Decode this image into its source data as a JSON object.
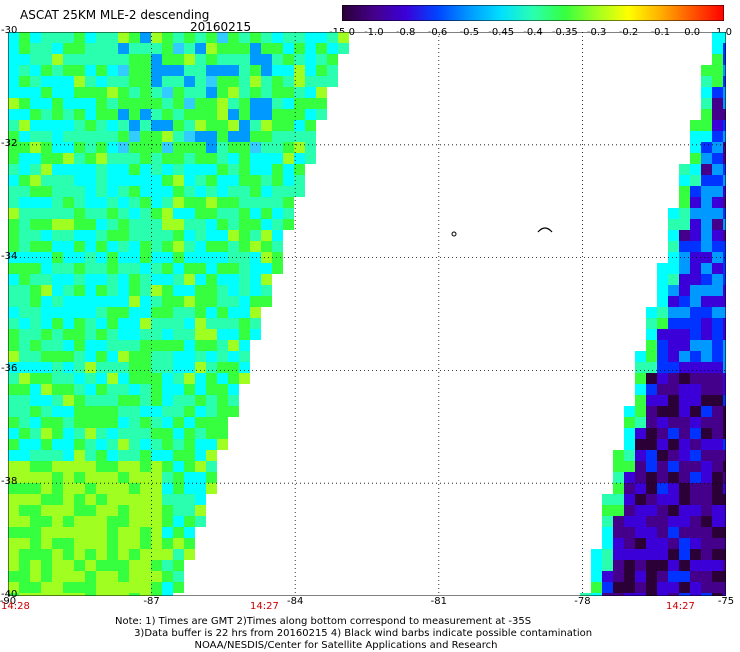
{
  "header": {
    "title": "ASCAT 25KM MLE-2 descending",
    "date": "20160215"
  },
  "color_scale": {
    "labels": [
      "-15.0",
      "-1.0",
      "-0.8",
      "-0.6",
      "-0.5",
      "-0.45",
      "-0.4",
      "-0.35",
      "-0.3",
      "-0.2",
      "-0.1",
      "0.0",
      "1.0"
    ],
    "colors": [
      "#2a0036",
      "#44008a",
      "#3b00d8",
      "#0044ff",
      "#0099ff",
      "#00e0ff",
      "#2affb0",
      "#36ff40",
      "#a0ff20",
      "#ffff00",
      "#ffb000",
      "#ff5500",
      "#ff0000"
    ]
  },
  "map": {
    "lat_labels": [
      "-30",
      "-32",
      "-34",
      "-36",
      "-38",
      "-40"
    ],
    "lon_labels": [
      "-90",
      "-87",
      "-84",
      "-81",
      "-78",
      "-75"
    ],
    "time_labels": [
      "14:28",
      "14:27",
      "14:27"
    ],
    "lat_range": [
      -40,
      -30
    ],
    "lon_range": [
      -90,
      -75
    ]
  },
  "notes": {
    "line1": "Note: 1) Times are GMT 2)Times along bottom correspond to measurement at -35S",
    "line2": "      3)Data buffer is 22 hrs from 20160215 4) Black wind barbs indicate possible contamination",
    "line3": "                         NOAA/NESDIS/Center for Satellite Applications and Research"
  }
}
